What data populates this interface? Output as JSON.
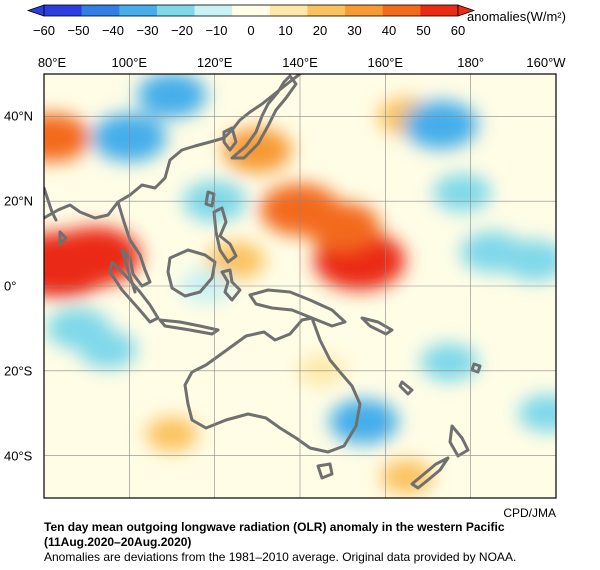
{
  "colorbar": {
    "title": "anomalies(W/m²)",
    "ticks": [
      "−60",
      "−50",
      "−40",
      "−30",
      "−20",
      "−10",
      "0",
      "10",
      "20",
      "30",
      "40",
      "50",
      "60"
    ],
    "colors": [
      "#2a3ee0",
      "#2f7fe6",
      "#45aeea",
      "#7fd8ea",
      "#c9f2f4",
      "#fffde6",
      "#fde8a8",
      "#fbc25e",
      "#f79a34",
      "#f36a1a",
      "#ea2a12"
    ]
  },
  "map": {
    "lon_labels": [
      "80°E",
      "100°E",
      "120°E",
      "140°E",
      "160°E",
      "180°",
      "160°W"
    ],
    "lat_labels": [
      "40°N",
      "20°N",
      "0°",
      "20°S",
      "40°S"
    ],
    "coast_color": "#707070",
    "anomaly_fields": [
      {
        "lon": 84,
        "lat": 5,
        "level": 60
      },
      {
        "lon": 92,
        "lat": 7,
        "level": 50
      },
      {
        "lon": 154,
        "lat": 6,
        "level": 50
      },
      {
        "lon": 140,
        "lat": 18,
        "level": 40
      },
      {
        "lon": 150,
        "lat": 14,
        "level": 35
      },
      {
        "lon": 130,
        "lat": 32,
        "level": 30
      },
      {
        "lon": 82,
        "lat": 35,
        "level": 35
      },
      {
        "lon": 125,
        "lat": 6,
        "level": 20
      },
      {
        "lon": 165,
        "lat": 40,
        "level": 20
      },
      {
        "lon": 100,
        "lat": 35,
        "level": -35
      },
      {
        "lon": 110,
        "lat": 45,
        "level": -30
      },
      {
        "lon": 120,
        "lat": 20,
        "level": -25
      },
      {
        "lon": 88,
        "lat": -10,
        "level": -25
      },
      {
        "lon": 95,
        "lat": -15,
        "level": -20
      },
      {
        "lon": 173,
        "lat": 38,
        "level": -35
      },
      {
        "lon": 185,
        "lat": 8,
        "level": -25
      },
      {
        "lon": 195,
        "lat": 6,
        "level": -25
      },
      {
        "lon": 178,
        "lat": 22,
        "level": -20
      },
      {
        "lon": 155,
        "lat": -32,
        "level": -30
      },
      {
        "lon": 175,
        "lat": -18,
        "level": -20
      },
      {
        "lon": 198,
        "lat": -30,
        "level": -20
      },
      {
        "lon": 118,
        "lat": 0,
        "level": -15
      },
      {
        "lon": 145,
        "lat": -20,
        "level": 10
      },
      {
        "lon": 110,
        "lat": -35,
        "level": 15
      },
      {
        "lon": 165,
        "lat": -45,
        "level": 15
      }
    ]
  },
  "captions": {
    "credit": "CPD/JMA",
    "title": "Ten day mean outgoing longwave radiation (OLR) anomaly in the western Pacific",
    "period": "(11Aug.2020–20Aug.2020)",
    "note": "Anomalies are deviations from the 1981–2010 average. Original data provided by NOAA."
  }
}
